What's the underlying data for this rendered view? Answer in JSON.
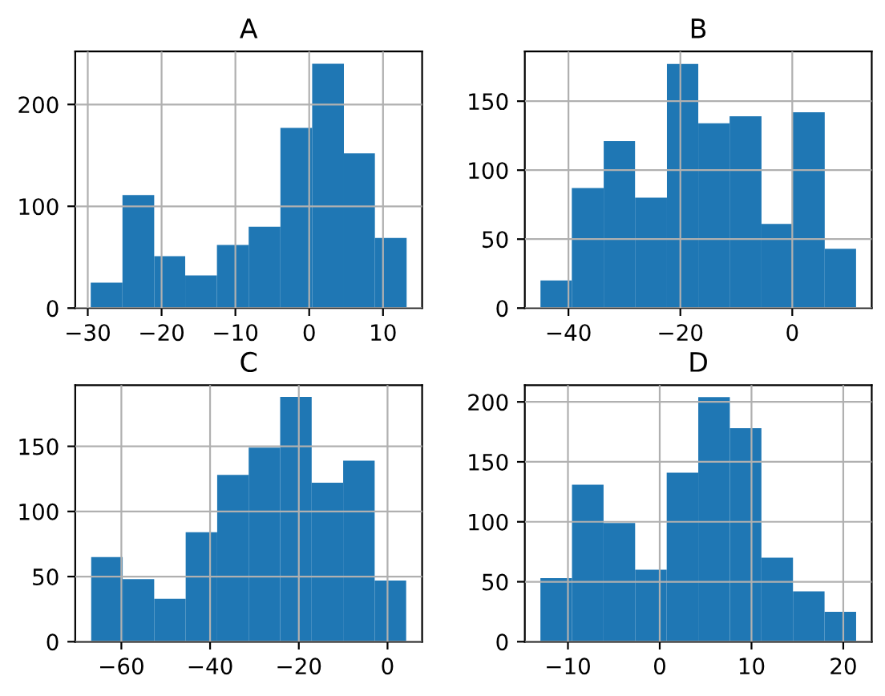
{
  "chart_data": [
    {
      "type": "histogram",
      "title": "A",
      "color": "#1f77b4",
      "bins": [
        -29.6,
        -25.3,
        -21.0,
        -16.8,
        -12.5,
        -8.2,
        -3.9,
        0.4,
        4.7,
        8.9,
        13.2
      ],
      "values": [
        25,
        111,
        51,
        32,
        62,
        80,
        177,
        240,
        152,
        69
      ],
      "xlim": [
        -31.7,
        15.3
      ],
      "xticks": [
        {
          "value": -30,
          "label": "−30"
        },
        {
          "value": -20,
          "label": "−20"
        },
        {
          "value": -10,
          "label": "−10"
        },
        0,
        10
      ],
      "ylim": [
        0,
        252
      ],
      "yticks": [
        0,
        100,
        200
      ],
      "grid": true
    },
    {
      "type": "histogram",
      "title": "B",
      "color": "#1f77b4",
      "bins": [
        -45.0,
        -39.4,
        -33.7,
        -28.1,
        -22.4,
        -16.8,
        -11.2,
        -5.5,
        0.1,
        5.8,
        11.4
      ],
      "values": [
        20,
        87,
        121,
        80,
        177,
        134,
        139,
        61,
        142,
        43
      ],
      "xlim": [
        -47.8,
        14.2
      ],
      "xticks": [
        {
          "value": -40,
          "label": "−40"
        },
        {
          "value": -20,
          "label": "−20"
        },
        0
      ],
      "ylim": [
        0,
        186
      ],
      "yticks": [
        0,
        50,
        100,
        150
      ],
      "grid": true
    },
    {
      "type": "histogram",
      "title": "C",
      "color": "#1f77b4",
      "bins": [
        -66.8,
        -59.7,
        -52.6,
        -45.5,
        -38.4,
        -31.3,
        -24.2,
        -17.1,
        -10.0,
        -2.9,
        4.2
      ],
      "values": [
        65,
        48,
        33,
        84,
        128,
        149,
        188,
        122,
        139,
        47
      ],
      "xlim": [
        -70.4,
        7.8
      ],
      "xticks": [
        {
          "value": -60,
          "label": "−60"
        },
        {
          "value": -40,
          "label": "−40"
        },
        {
          "value": -20,
          "label": "−20"
        },
        0
      ],
      "ylim": [
        0,
        197
      ],
      "yticks": [
        0,
        50,
        100,
        150
      ],
      "grid": true
    },
    {
      "type": "histogram",
      "title": "D",
      "color": "#1f77b4",
      "bins": [
        -13.0,
        -9.56,
        -6.12,
        -2.68,
        0.76,
        4.2,
        7.64,
        11.08,
        14.52,
        17.96,
        21.4
      ],
      "values": [
        53,
        131,
        99,
        60,
        141,
        204,
        178,
        70,
        42,
        25
      ],
      "xlim": [
        -14.7,
        23.1
      ],
      "xticks": [
        {
          "value": -10,
          "label": "−10"
        },
        0,
        10,
        20
      ],
      "ylim": [
        0,
        214
      ],
      "yticks": [
        0,
        50,
        100,
        150,
        200
      ],
      "grid": true
    }
  ]
}
